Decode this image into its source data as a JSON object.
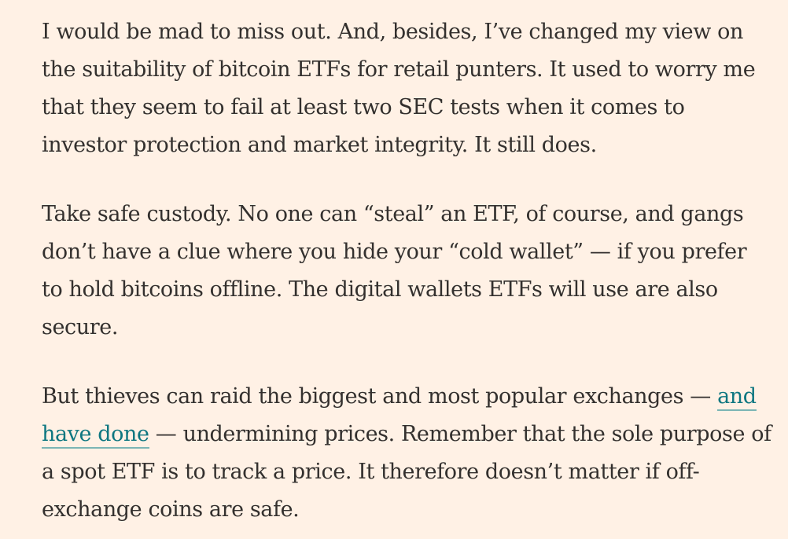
{
  "article": {
    "paragraphs": [
      {
        "text": "I would be mad to miss out. And, besides, I’ve changed my view on the suitability of bitcoin ETFs for retail punters. It used to worry me that they seem to fail at least two SEC tests when it comes to investor protection and market integrity. It still does."
      },
      {
        "text": "Take safe custody. No one can “steal” an ETF, of course, and gangs don’t have a clue where you hide your “cold wallet” — if you prefer to hold bitcoins offline. The digital wallets ETFs will use are also secure."
      },
      {
        "before_link": "But thieves can raid the biggest and most popular exchanges — ",
        "link_text": "and have done",
        "after_link": " — undermining prices. Remember that the sole purpose of a spot ETF is to track a price. It therefore doesn’t matter if off-exchange coins are safe."
      }
    ]
  }
}
